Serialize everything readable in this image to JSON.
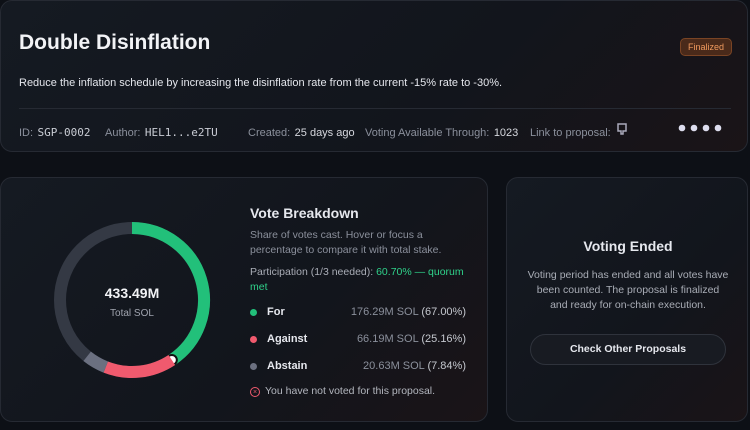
{
  "header": {
    "title": "Double Disinflation",
    "status": "Finalized",
    "description": "Reduce the inflation schedule by increasing the disinflation rate from the current -15% rate to -30%."
  },
  "meta": [
    {
      "label": "ID:",
      "value": "SGP-0002"
    },
    {
      "label": "Author:",
      "value": "HEL1...e2TU"
    },
    {
      "label": "Created:",
      "value": "25 days ago"
    },
    {
      "label": "Voting Available Through:",
      "value": "1023"
    },
    {
      "label": "Link to proposal:"
    }
  ],
  "breakdown": {
    "title": "Vote Breakdown",
    "description": [
      "Share of votes cast. Hover or focus a",
      "percentage to compare it with total stake."
    ],
    "participation": {
      "label": "Participation (1/3 needed):",
      "value": 60.7,
      "value_label": "60.70% — quorum",
      "value_label_2": "met"
    },
    "total": "433.49M",
    "total_label": "Total SOL",
    "options": [
      {
        "name": "For",
        "amount": "176.29M SOL",
        "share": 67.0,
        "share_label": "(67.00%)",
        "color": "#22c07a"
      },
      {
        "name": "Against",
        "amount": "66.19M SOL",
        "share": 25.16,
        "share_label": "(25.16%)",
        "color": "#f05a6e"
      },
      {
        "name": "Abstain",
        "amount": "20.63M SOL",
        "share": 7.84,
        "share_label": "(7.84%)",
        "color": "#6b7080"
      }
    ],
    "not_voted": "You have not voted for this proposal."
  },
  "ended": {
    "title": "Voting Ended",
    "text": [
      "Voting period has ended and all votes have",
      "been counted. The proposal is finalized",
      "and ready for on-chain execution."
    ],
    "button": "Check Other Proposals"
  }
}
